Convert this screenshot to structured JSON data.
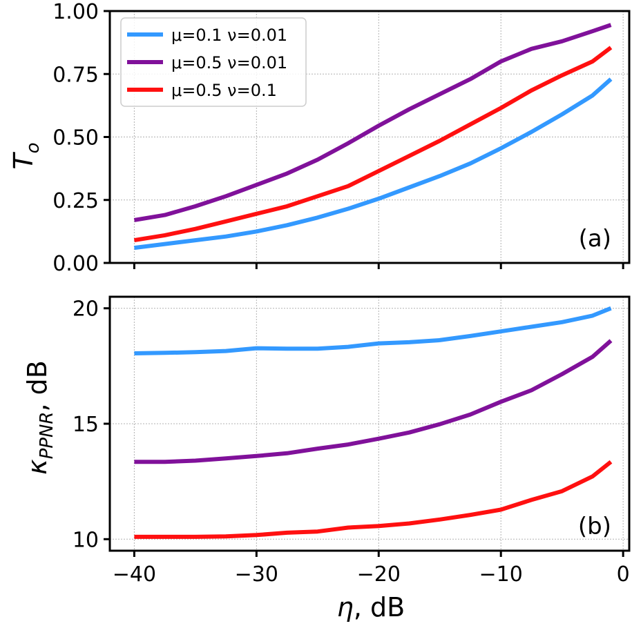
{
  "chart_data": [
    {
      "type": "line",
      "panel_label": "(a)",
      "ylabel": "T_o",
      "ylabel_main": "T",
      "ylabel_sub": "o",
      "xlim": [
        -42,
        0.5
      ],
      "ylim": [
        0,
        1
      ],
      "yticks": [
        0,
        0.25,
        0.5,
        0.75,
        1.0
      ],
      "ytick_labels": [
        "0.00",
        "0.25",
        "0.50",
        "0.75",
        "1.00"
      ],
      "xticks": [
        -40,
        -30,
        -20,
        -10,
        0
      ],
      "grid": true,
      "legend_position": "top-left",
      "x": [
        -40,
        -37.5,
        -35,
        -32.5,
        -30,
        -27.5,
        -25,
        -22.5,
        -20,
        -17.5,
        -15,
        -12.5,
        -10,
        -7.5,
        -5,
        -2.5,
        -1
      ],
      "series": [
        {
          "name": "μ=0.1 ν=0.01",
          "color": "#3399ff",
          "values": [
            0.06,
            0.075,
            0.09,
            0.105,
            0.125,
            0.15,
            0.18,
            0.215,
            0.255,
            0.3,
            0.345,
            0.395,
            0.455,
            0.52,
            0.59,
            0.665,
            0.73
          ]
        },
        {
          "name": "μ=0.5 ν=0.01",
          "color": "#80119a",
          "values": [
            0.17,
            0.19,
            0.225,
            0.265,
            0.31,
            0.355,
            0.41,
            0.475,
            0.545,
            0.61,
            0.67,
            0.73,
            0.8,
            0.85,
            0.88,
            0.92,
            0.945
          ]
        },
        {
          "name": "μ=0.5 ν=0.1",
          "color": "#ff1010",
          "values": [
            0.09,
            0.11,
            0.135,
            0.165,
            0.195,
            0.225,
            0.265,
            0.305,
            0.365,
            0.425,
            0.485,
            0.55,
            0.615,
            0.685,
            0.745,
            0.8,
            0.855
          ]
        }
      ]
    },
    {
      "type": "line",
      "panel_label": "(b)",
      "ylabel": "κ_PPNR, dB",
      "ylabel_main": "κ",
      "ylabel_sub": "PPNR",
      "ylabel_rest": ",  dB",
      "xlabel": "η,  dB",
      "xlabel_main": "η",
      "xlabel_rest": ",  dB",
      "xlim": [
        -42,
        0.5
      ],
      "ylim": [
        9.5,
        20.5
      ],
      "yticks": [
        10,
        15,
        20
      ],
      "ytick_labels": [
        "10",
        "15",
        "20"
      ],
      "xticks": [
        -40,
        -30,
        -20,
        -10,
        0
      ],
      "xtick_labels": [
        "−40",
        "−30",
        "−20",
        "−10",
        "0"
      ],
      "grid": true,
      "x": [
        -40,
        -37.5,
        -35,
        -32.5,
        -30,
        -27.5,
        -25,
        -22.5,
        -20,
        -17.5,
        -15,
        -12.5,
        -10,
        -7.5,
        -5,
        -2.5,
        -1
      ],
      "series": [
        {
          "name": "μ=0.1 ν=0.01",
          "color": "#3399ff",
          "values": [
            18.05,
            18.07,
            18.1,
            18.15,
            18.27,
            18.25,
            18.25,
            18.33,
            18.48,
            18.53,
            18.62,
            18.8,
            19.0,
            19.2,
            19.4,
            19.68,
            20.0
          ]
        },
        {
          "name": "μ=0.5 ν=0.01",
          "color": "#80119a",
          "values": [
            13.35,
            13.35,
            13.4,
            13.5,
            13.6,
            13.72,
            13.92,
            14.1,
            14.35,
            14.62,
            14.98,
            15.4,
            15.95,
            16.45,
            17.15,
            17.9,
            18.6
          ]
        },
        {
          "name": "μ=0.5 ν=0.1",
          "color": "#ff1010",
          "values": [
            10.1,
            10.1,
            10.1,
            10.12,
            10.18,
            10.28,
            10.33,
            10.5,
            10.57,
            10.68,
            10.85,
            11.05,
            11.28,
            11.7,
            12.08,
            12.72,
            13.35
          ]
        }
      ]
    }
  ]
}
